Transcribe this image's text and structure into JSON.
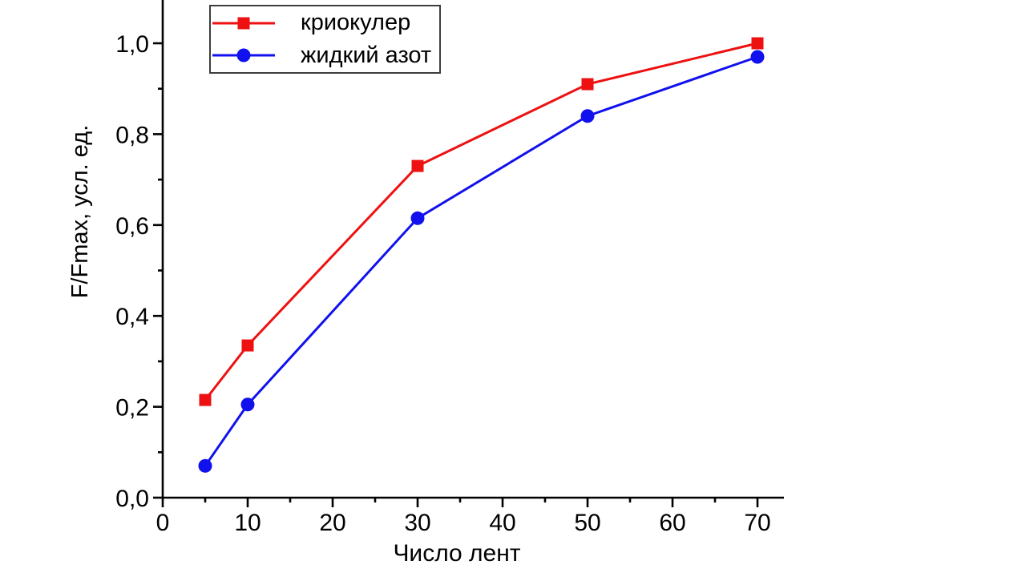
{
  "figure": {
    "background": "#ffffff",
    "text_color": "#000000",
    "axis_color": "#000000"
  },
  "chart_data": {
    "type": "line",
    "title": "",
    "xlabel": "Число лент",
    "ylabel": "F/Fmax, усл. ед.",
    "x": [
      5,
      10,
      30,
      50,
      70
    ],
    "series": [
      {
        "name": "криокулер",
        "marker": "square",
        "color": "#ee1111",
        "values": [
          0.215,
          0.335,
          0.73,
          0.91,
          1.0
        ]
      },
      {
        "name": "жидкий азот",
        "marker": "circle",
        "color": "#1111ee",
        "values": [
          0.07,
          0.205,
          0.615,
          0.84,
          0.97
        ]
      }
    ],
    "xlim": [
      0,
      73
    ],
    "ylim": [
      0,
      1.1
    ],
    "x_major_ticks": [
      0,
      10,
      20,
      30,
      40,
      50,
      60,
      70
    ],
    "x_tick_labels": [
      "0",
      "10",
      "20",
      "30",
      "40",
      "50",
      "60",
      "70"
    ],
    "x_minor_ticks": [
      5,
      15,
      25,
      35,
      45,
      55,
      65
    ],
    "y_major_ticks": [
      0,
      0.2,
      0.4,
      0.6,
      0.8,
      1.0
    ],
    "y_tick_labels": [
      "0,0",
      "0,2",
      "0,4",
      "0,6",
      "0,8",
      "1,0"
    ],
    "y_minor_ticks": [
      0.1,
      0.3,
      0.5,
      0.7,
      0.9
    ],
    "grid": false,
    "legend": {
      "position": "top-left-inside",
      "border": true
    }
  }
}
